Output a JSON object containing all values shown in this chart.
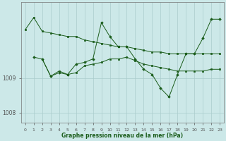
{
  "background_color": "#cce8e8",
  "plot_bg_color": "#cce8e8",
  "grid_color": "#aacccc",
  "line_color": "#1a5c1a",
  "marker_color": "#1a5c1a",
  "xlabel": "Graphe pression niveau de la mer (hPa)",
  "xlim": [
    -0.5,
    23.5
  ],
  "ylim": [
    1007.7,
    1011.2
  ],
  "yticks": [
    1008,
    1009
  ],
  "xticks": [
    0,
    1,
    2,
    3,
    4,
    5,
    6,
    7,
    8,
    9,
    10,
    11,
    12,
    13,
    14,
    15,
    16,
    17,
    18,
    19,
    20,
    21,
    22,
    23
  ],
  "line1_x": [
    0,
    1,
    2,
    3,
    4,
    5,
    6,
    7,
    8,
    9,
    10,
    11,
    12,
    13,
    14,
    15,
    16,
    17,
    18,
    19,
    20,
    21,
    22,
    23
  ],
  "line1_y": [
    1010.4,
    1010.75,
    1010.35,
    1010.3,
    1010.25,
    1010.2,
    1010.2,
    1010.1,
    1010.05,
    1010.0,
    1009.95,
    1009.9,
    1009.9,
    1009.85,
    1009.8,
    1009.75,
    1009.75,
    1009.7,
    1009.7,
    1009.7,
    1009.7,
    1009.7,
    1009.7,
    1009.7
  ],
  "line2_x": [
    1,
    2,
    3,
    4,
    5,
    6,
    7,
    8,
    9,
    10,
    11,
    12,
    13,
    14,
    15,
    16,
    17,
    18,
    19,
    20,
    21,
    22,
    23
  ],
  "line2_y": [
    1009.6,
    1009.55,
    1009.05,
    1009.15,
    1009.1,
    1009.4,
    1009.45,
    1009.55,
    1010.6,
    1010.2,
    1009.9,
    1009.9,
    1009.55,
    1009.25,
    1009.1,
    1008.7,
    1008.45,
    1009.1,
    1009.7,
    1009.7,
    1010.15,
    1010.7,
    1010.7
  ],
  "line3_x": [
    2,
    3,
    4,
    5,
    6,
    7,
    8,
    9,
    10,
    11,
    12,
    13,
    14,
    15,
    16,
    17,
    18,
    19,
    20,
    21,
    22,
    23
  ],
  "line3_y": [
    1009.55,
    1009.05,
    1009.2,
    1009.1,
    1009.15,
    1009.35,
    1009.4,
    1009.45,
    1009.55,
    1009.55,
    1009.6,
    1009.5,
    1009.4,
    1009.35,
    1009.3,
    1009.25,
    1009.2,
    1009.2,
    1009.2,
    1009.2,
    1009.25,
    1009.25
  ]
}
